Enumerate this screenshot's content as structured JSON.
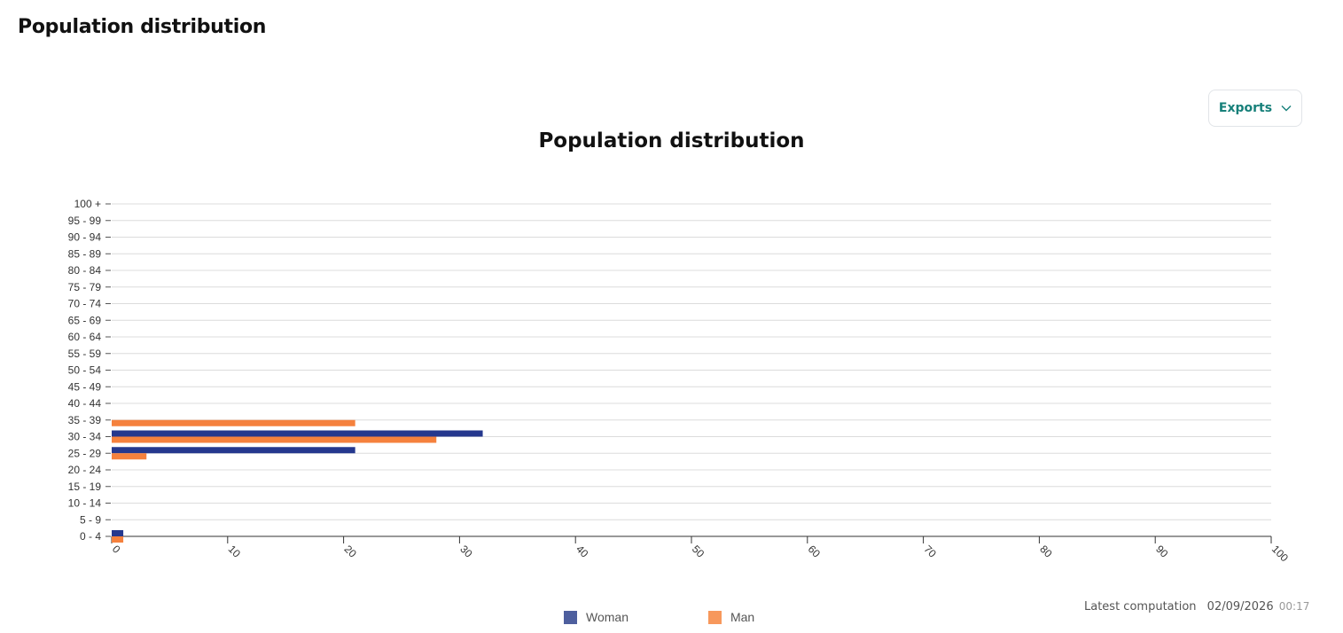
{
  "page": {
    "title": "Population distribution"
  },
  "toolbar": {
    "exports_label": "Exports",
    "exports_icon": "chevron-down-icon"
  },
  "colors": {
    "woman": "#25388e",
    "man": "#f5813d",
    "accent": "#17807a"
  },
  "chart_data": {
    "type": "bar",
    "orientation": "horizontal",
    "title": "Population distribution",
    "xlabel": "",
    "ylabel": "",
    "xlim": [
      0,
      100
    ],
    "x_ticks": [
      0,
      10,
      20,
      30,
      40,
      50,
      60,
      70,
      80,
      90,
      100
    ],
    "grid": true,
    "legend": "bottom",
    "categories": [
      "0 - 4",
      "5 - 9",
      "10 - 14",
      "15 - 19",
      "20 - 24",
      "25 - 29",
      "30 - 34",
      "35 - 39",
      "40 - 44",
      "45 - 49",
      "50 - 54",
      "55 - 59",
      "60 - 64",
      "65 - 69",
      "70 - 74",
      "75 - 79",
      "80 - 84",
      "85 - 89",
      "90 - 94",
      "95 - 99",
      "100 +"
    ],
    "series": [
      {
        "name": "Woman",
        "color": "#25388e",
        "values": [
          1,
          0,
          0,
          0,
          0,
          21,
          32,
          0,
          0,
          0,
          0,
          0,
          0,
          0,
          0,
          0,
          0,
          0,
          0,
          0,
          0
        ]
      },
      {
        "name": "Man",
        "color": "#f5813d",
        "values": [
          1,
          0,
          0,
          0,
          0,
          3,
          28,
          21,
          0,
          0,
          0,
          0,
          0,
          0,
          0,
          0,
          0,
          0,
          0,
          0,
          0
        ]
      }
    ]
  },
  "legend": {
    "woman_label": "Woman",
    "woman_color": "#4e5f9e",
    "man_label": "Man",
    "man_color": "#f7985c"
  },
  "footer": {
    "computation_label": "Latest computation",
    "date": "02/09/2026",
    "time": "00:17"
  }
}
